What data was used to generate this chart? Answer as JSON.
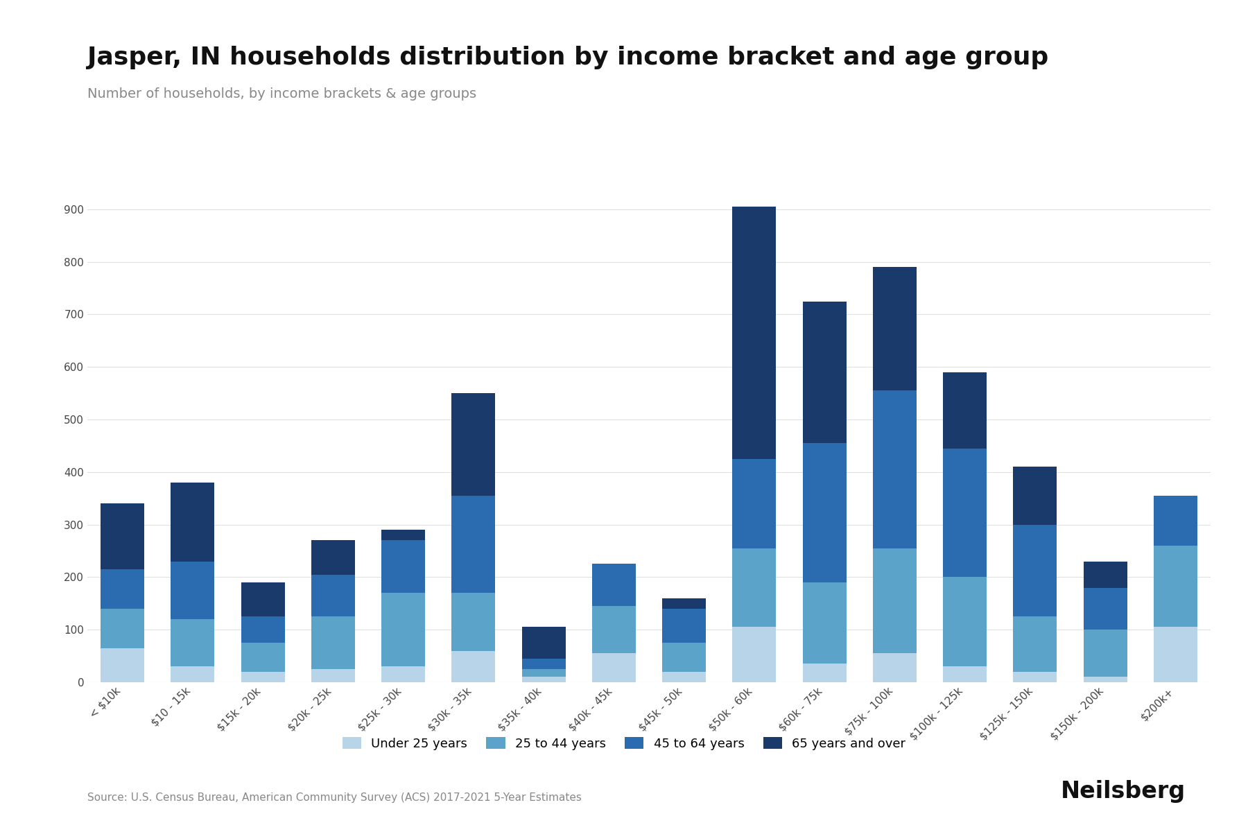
{
  "title": "Jasper, IN households distribution by income bracket and age group",
  "subtitle": "Number of households, by income brackets & age groups",
  "source": "Source: U.S. Census Bureau, American Community Survey (ACS) 2017-2021 5-Year Estimates",
  "categories": [
    "< $10k",
    "$10 - 15k",
    "$15k - 20k",
    "$20k - 25k",
    "$25k - 30k",
    "$30k - 35k",
    "$35k - 40k",
    "$40k - 45k",
    "$45k - 50k",
    "$50k - 60k",
    "$60k - 75k",
    "$75k - 100k",
    "$100k - 125k",
    "$125k - 150k",
    "$150k - 200k",
    "$200k+"
  ],
  "age_groups": [
    "Under 25 years",
    "25 to 44 years",
    "45 to 64 years",
    "65 years and over"
  ],
  "colors": [
    "#b8d4e8",
    "#5ba3c9",
    "#2b6cb0",
    "#1a3a6b"
  ],
  "data": {
    "Under 25 years": [
      65,
      30,
      20,
      25,
      30,
      60,
      10,
      55,
      20,
      105,
      35,
      55,
      30,
      20,
      10,
      105
    ],
    "25 to 44 years": [
      75,
      90,
      55,
      100,
      140,
      110,
      15,
      90,
      55,
      150,
      155,
      200,
      170,
      105,
      90,
      155
    ],
    "45 to 64 years": [
      75,
      110,
      50,
      80,
      100,
      185,
      20,
      80,
      65,
      170,
      265,
      300,
      245,
      175,
      80,
      95
    ],
    "65 years and over": [
      125,
      150,
      65,
      65,
      20,
      195,
      60,
      0,
      20,
      480,
      270,
      235,
      145,
      110,
      50,
      0
    ]
  },
  "ylim": [
    0,
    950
  ],
  "yticks": [
    0,
    100,
    200,
    300,
    400,
    500,
    600,
    700,
    800,
    900
  ],
  "background_color": "#ffffff",
  "grid_color": "#e0e0e0",
  "title_fontsize": 26,
  "subtitle_fontsize": 14,
  "source_fontsize": 11,
  "tick_fontsize": 11,
  "legend_fontsize": 13
}
